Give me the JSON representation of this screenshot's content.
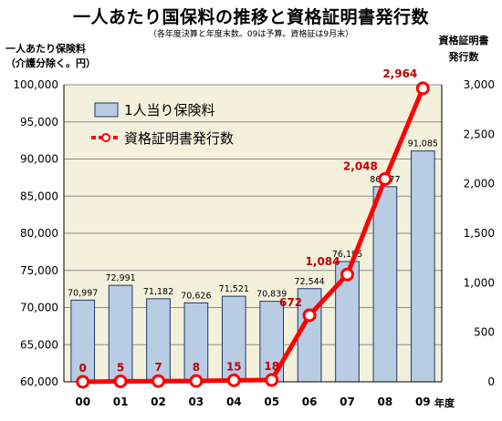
{
  "title": "一人あたり国保料の推移と資格証明書発行数",
  "subtitle": "（各年度決算と年度末数。09は予算。資格証は9月末）",
  "left_axis_label": [
    "一人あたり保険料",
    "（介護分除く。円）"
  ],
  "right_axis_label": [
    "資格証明書",
    "発行数"
  ],
  "x_axis_label": "年度",
  "colors": {
    "plot_bg": "#f3f0dc",
    "bar_fill": "#b8cce4",
    "bar_stroke": "#1f3864",
    "line": "#ff0000",
    "count_label": "#c00000"
  },
  "chart_data": {
    "type": "bar",
    "categories": [
      "00",
      "01",
      "02",
      "03",
      "04",
      "05",
      "06",
      "07",
      "08",
      "09"
    ],
    "series": [
      {
        "name": "1人当り保険料",
        "type": "bar",
        "axis": "left",
        "values": [
          70997,
          72991,
          71182,
          70626,
          71521,
          70839,
          72544,
          76195,
          86277,
          91085
        ],
        "labels": [
          "70,997",
          "72,991",
          "71,182",
          "70,626",
          "71,521",
          "70,839",
          "72,544",
          "76,195",
          "86,277",
          "91,085"
        ]
      },
      {
        "name": "資格証明書発行数",
        "type": "line",
        "axis": "right",
        "values": [
          0,
          5,
          7,
          8,
          15,
          18,
          672,
          1084,
          2048,
          2964
        ],
        "labels": [
          "0",
          "5",
          "7",
          "8",
          "15",
          "18",
          "672",
          "1,084",
          "2,048",
          "2,964"
        ]
      }
    ],
    "y_left": {
      "lim": [
        60000,
        100000
      ],
      "ticks": [
        60000,
        65000,
        70000,
        75000,
        80000,
        85000,
        90000,
        95000,
        100000
      ],
      "tick_labels": [
        "60,000",
        "65,000",
        "70,000",
        "75,000",
        "80,000",
        "85,000",
        "90,000",
        "95,000",
        "100,000"
      ]
    },
    "y_right": {
      "lim": [
        0,
        3000
      ],
      "ticks": [
        0,
        500,
        1000,
        1500,
        2000,
        2500,
        3000
      ],
      "tick_labels": [
        "0",
        "500",
        "1,000",
        "1,500",
        "2,000",
        "2,500",
        "3,000"
      ]
    },
    "grid": true,
    "legend": "top-left"
  }
}
